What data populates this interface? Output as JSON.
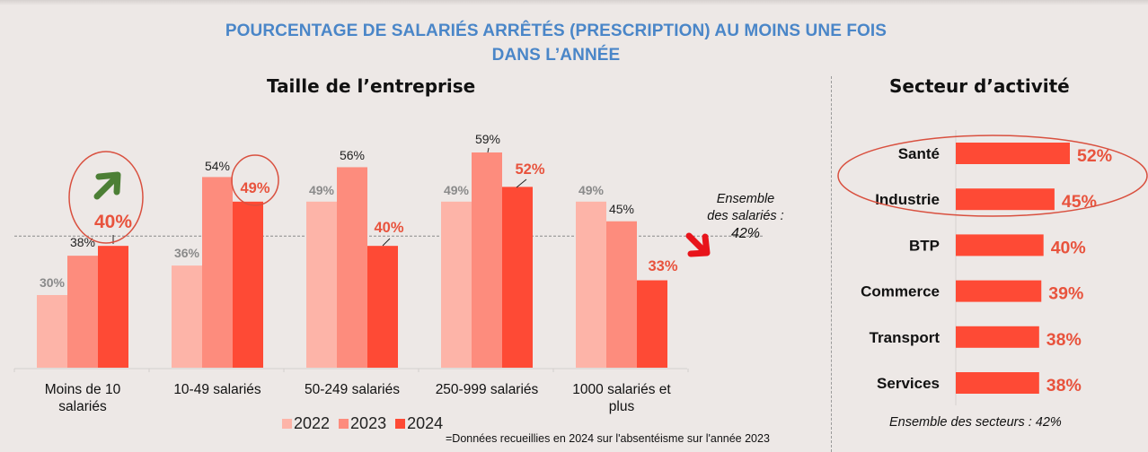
{
  "title": {
    "line1": "POURCENTAGE DE SALARIÉS ARRÊTÉS (PRESCRIPTION) AU MOINS UNE FOIS",
    "line2": "DANS L’ANNÉE"
  },
  "colors": {
    "title": "#4a86c8",
    "y2022": "#fdb4a8",
    "y2023": "#fd8c7d",
    "y2024": "#fe4a35",
    "highlight_label": "#e8533d",
    "muted_label": "#8a8a8a",
    "circle": "#d9503f",
    "arrow_up": "#4c7f35",
    "arrow_down": "#e8141b"
  },
  "footnote": "=Données recueillies en 2024 sur l'absentéisme sur l'année 2023",
  "reference": {
    "line1": "Ensemble",
    "line2": "des salariés :",
    "line3": "42%"
  },
  "sector_reference": "Ensemble des secteurs : 42%",
  "chart_data": [
    {
      "type": "bar",
      "title": "Taille de l’entreprise",
      "categories": [
        [
          "Moins de 10",
          "salariés"
        ],
        [
          "10-49 salariés"
        ],
        [
          "50-249 salariés"
        ],
        [
          "250-999 salariés"
        ],
        [
          "1000 salariés et",
          "plus"
        ]
      ],
      "series": [
        {
          "name": "2022",
          "values": [
            30,
            36,
            49,
            49,
            49
          ],
          "labels": [
            "30%",
            "36%",
            "49%",
            "49%",
            "49%"
          ]
        },
        {
          "name": "2023",
          "values": [
            38,
            54,
            56,
            59,
            45
          ],
          "labels": [
            "38%",
            "54%",
            "56%",
            "59%",
            "45%"
          ]
        },
        {
          "name": "2024",
          "values": [
            40,
            49,
            40,
            52,
            33
          ],
          "labels": [
            "40%",
            "49%",
            "40%",
            "52%",
            "33%"
          ]
        }
      ],
      "reference_line": {
        "value": 42,
        "label": "Ensemble des salariés : 42%"
      },
      "ylim": [
        15,
        62
      ],
      "xlabel": "",
      "ylabel": "",
      "grid": false,
      "legend": "bottom",
      "annotations": [
        "up-arrow over Moins de 10 salariés (2024)",
        "circle around 49% (10-49 salariés 2024)",
        "down-arrow near 1000 salariés et plus"
      ]
    },
    {
      "type": "bar",
      "orientation": "horizontal",
      "title": "Secteur d’activité",
      "categories": [
        "Santé",
        "Industrie",
        "BTP",
        "Commerce",
        "Transport",
        "Services"
      ],
      "values": [
        52,
        45,
        40,
        39,
        38,
        38
      ],
      "labels": [
        "52%",
        "45%",
        "40%",
        "39%",
        "38%",
        "38%"
      ],
      "xlim": [
        0,
        60
      ],
      "grid": false,
      "annotations": [
        "ellipse around Santé and Industrie",
        "Ensemble des secteurs : 42%"
      ]
    }
  ]
}
